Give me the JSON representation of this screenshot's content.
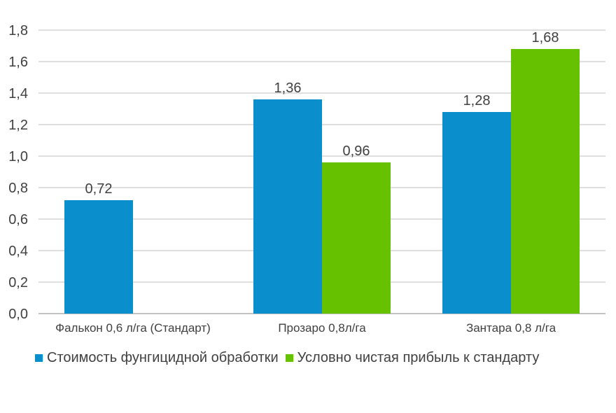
{
  "chart_data": {
    "type": "bar",
    "title": "",
    "xlabel": "",
    "ylabel": "",
    "categories": [
      "Фалькон 0,6 л/га (Стандарт)",
      "Прозаро 0,8л/га",
      "Зантара 0,8 л/га"
    ],
    "series": [
      {
        "name": "Стоимость фунгицидной обработки",
        "color": "#0a8fcc",
        "values": [
          0.72,
          1.36,
          1.28
        ],
        "labels": [
          "0,72",
          "1,36",
          "1,28"
        ]
      },
      {
        "name": "Условно чистая прибыль к стандарту",
        "color": "#66c200",
        "values": [
          null,
          0.96,
          1.68
        ],
        "labels": [
          "",
          "0,96",
          "1,68"
        ]
      }
    ],
    "ylim": [
      0,
      1.8
    ],
    "yticks": [
      0,
      0.2,
      0.4,
      0.6,
      0.8,
      1.0,
      1.2,
      1.4,
      1.6,
      1.8
    ],
    "ytick_labels": [
      "0,0",
      "0,2",
      "0,4",
      "0,6",
      "0,8",
      "1,0",
      "1,2",
      "1,4",
      "1,6",
      "1,8"
    ],
    "grid": true,
    "legend": "bottom"
  }
}
